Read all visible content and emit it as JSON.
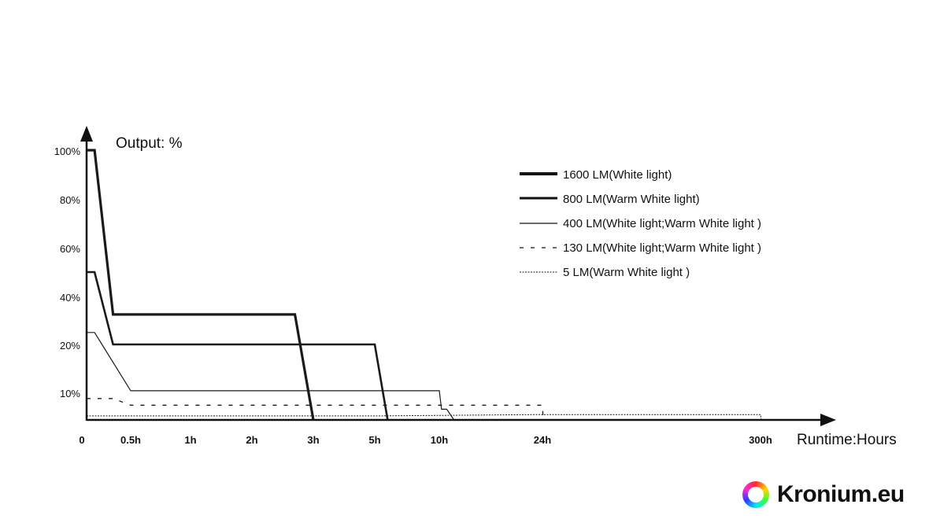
{
  "chart_data": {
    "type": "line",
    "ylabel": "Output: %",
    "xlabel": "Runtime:Hours",
    "y_ticks": [
      "100%",
      "80%",
      "60%",
      "40%",
      "20%",
      "10%"
    ],
    "x_ticks": [
      "0",
      "0.5h",
      "1h",
      "2h",
      "3h",
      "5h",
      "10h",
      "24h",
      "300h"
    ],
    "legend_placement": "top-right",
    "grid": false,
    "series": [
      {
        "name": "1600 LM(White light)",
        "style": "thick",
        "points": [
          [
            0,
            100
          ],
          [
            0.09,
            100
          ],
          [
            0.3,
            32.5
          ],
          [
            2.7,
            32.5
          ],
          [
            3,
            0
          ]
        ]
      },
      {
        "name": "800 LM(Warm White light)",
        "style": "medium",
        "points": [
          [
            0,
            50
          ],
          [
            0.09,
            50
          ],
          [
            0.3,
            20
          ],
          [
            5,
            20
          ],
          [
            6,
            0
          ]
        ]
      },
      {
        "name": "400 LM(White light;Warm White light )",
        "style": "thin",
        "points": [
          [
            0,
            25
          ],
          [
            0.09,
            25
          ],
          [
            0.5,
            10.5
          ],
          [
            10,
            10.5
          ],
          [
            10.3,
            4
          ],
          [
            11,
            4
          ],
          [
            12,
            0
          ]
        ]
      },
      {
        "name": "130 LM(White light;Warm White light )",
        "style": "dashed",
        "points": [
          [
            0,
            8
          ],
          [
            0.3,
            8
          ],
          [
            0.5,
            5.5
          ],
          [
            24,
            5.5
          ],
          [
            25,
            0
          ]
        ]
      },
      {
        "name": "5 LM(Warm White light )",
        "style": "dotted",
        "points": [
          [
            0,
            1.5
          ],
          [
            5,
            1.5
          ],
          [
            24,
            2
          ],
          [
            300,
            2
          ],
          [
            301,
            0
          ]
        ]
      }
    ]
  },
  "brand": {
    "name": "Kronium.eu"
  }
}
